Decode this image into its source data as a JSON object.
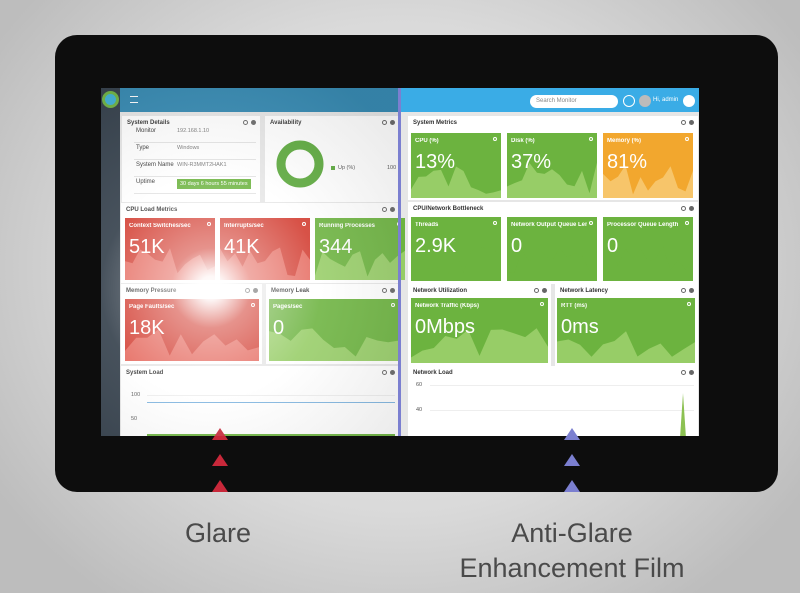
{
  "topbar": {
    "search_placeholder": "Search Monitor",
    "user": "Hi, admin"
  },
  "left": {
    "system_details": {
      "title": "System Details",
      "rows": [
        [
          "Monitor",
          "192.168.1.10"
        ],
        [
          "Type",
          "Windows"
        ],
        [
          "System Name",
          "WIN-R3MMT2HAK1"
        ],
        [
          "Uptime",
          "30 days 6 hours 55 minutes"
        ]
      ]
    },
    "availability": {
      "title": "Availability",
      "legend": "Up (%)",
      "axis": "100"
    },
    "cpu_load": {
      "title": "CPU Load Metrics",
      "tiles": [
        {
          "label": "Context Switches/sec",
          "value": "51K"
        },
        {
          "label": "Interrupts/sec",
          "value": "41K"
        },
        {
          "label": "Running Processes",
          "value": "344"
        }
      ]
    },
    "memory_pressure": {
      "title": "Memory Pressure",
      "tiles": [
        {
          "label": "Page Faults/sec",
          "value": "18K"
        }
      ]
    },
    "memory_leak": {
      "title": "Memory Leak",
      "tiles": [
        {
          "label": "Pages/sec",
          "value": "0"
        }
      ]
    },
    "system_load": {
      "title": "System Load",
      "yticks": [
        "100",
        "50"
      ]
    }
  },
  "right": {
    "system_metrics": {
      "title": "System Metrics",
      "tiles": [
        {
          "label": "CPU (%)",
          "value": "13%"
        },
        {
          "label": "Disk (%)",
          "value": "37%"
        },
        {
          "label": "Memory (%)",
          "value": "81%"
        }
      ]
    },
    "bottleneck": {
      "title": "CPU/Network Bottleneck",
      "tiles": [
        {
          "label": "Threads",
          "value": "2.9K"
        },
        {
          "label": "Network Output Queue Len...",
          "value": "0"
        },
        {
          "label": "Processor Queue Length",
          "value": "0"
        }
      ]
    },
    "network_utilization": {
      "title": "Network Utilization",
      "tiles": [
        {
          "label": "Network Traffic (Kbps)",
          "value": "0Mbps"
        }
      ]
    },
    "network_latency": {
      "title": "Network Latency",
      "tiles": [
        {
          "label": "RTT (ms)",
          "value": "0ms"
        }
      ]
    },
    "network_load": {
      "title": "Network Load",
      "yticks": [
        "60",
        "40"
      ]
    }
  },
  "captions": {
    "glare": "Glare",
    "anti_glare": [
      "Anti-Glare",
      "Enhancement Film"
    ]
  }
}
